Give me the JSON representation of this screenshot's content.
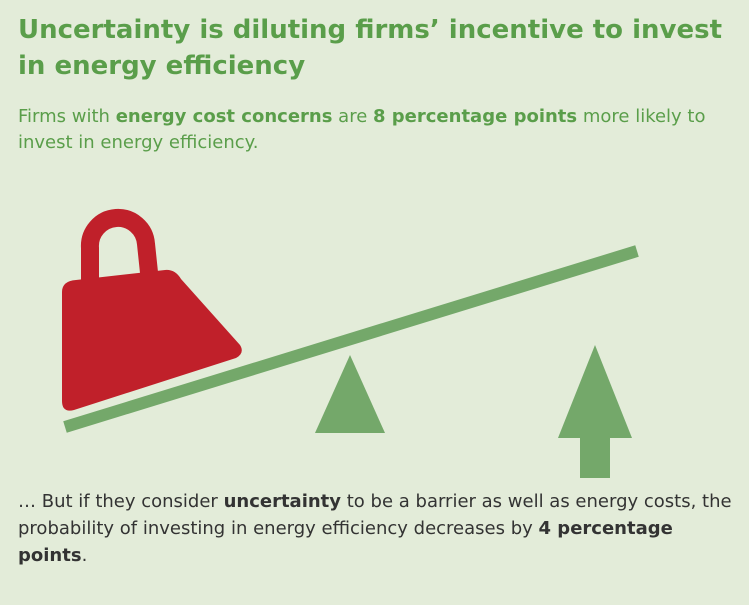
{
  "header": {
    "title": "Uncertainty is diluting firms’ incentive to invest in energy efficiency"
  },
  "intro": [
    {
      "text": "Firms with ",
      "bold": false
    },
    {
      "text": "energy cost concerns",
      "bold": true
    },
    {
      "text": " are ",
      "bold": false
    },
    {
      "text": "8 percentage points",
      "bold": true
    },
    {
      "text": " more likely to invest in energy efficiency.",
      "bold": false
    }
  ],
  "outro": [
    {
      "text": "… But if they consider ",
      "bold": false
    },
    {
      "text": "uncertainty",
      "bold": true
    },
    {
      "text": " to be a barrier as well as energy costs, the probability of investing in energy efficiency decreases by ",
      "bold": false
    },
    {
      "text": "4 percentage points",
      "bold": true
    },
    {
      "text": ".",
      "bold": false
    }
  ]
}
